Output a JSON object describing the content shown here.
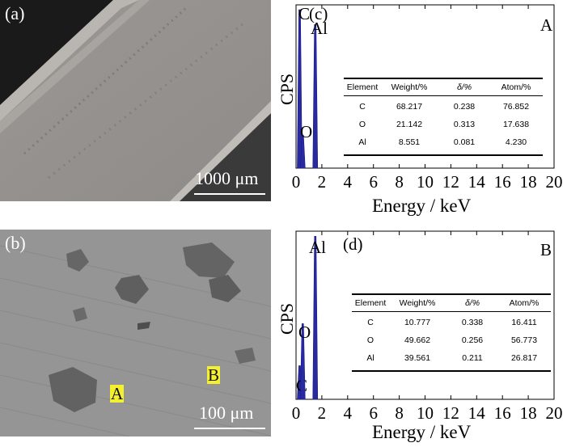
{
  "figure": {
    "panel_a": {
      "label": "(a)",
      "scale": "1000 μm"
    },
    "panel_b": {
      "label": "(b)",
      "scale": "100 μm",
      "markers": [
        "A",
        "B"
      ]
    }
  },
  "chart_data": [
    {
      "type": "bar",
      "panel": "(c)",
      "point": "A",
      "xlabel": "Energy / keV",
      "ylabel": "CPS",
      "xlim": [
        0,
        20
      ],
      "xticks": [
        0,
        2,
        4,
        6,
        8,
        10,
        12,
        14,
        16,
        18,
        20
      ],
      "peaks": [
        {
          "element": "C",
          "energy": 0.28,
          "relative_height": 0.97
        },
        {
          "element": "O",
          "energy": 0.52,
          "relative_height": 0.2
        },
        {
          "element": "Al",
          "energy": 1.49,
          "relative_height": 0.88
        }
      ],
      "table": {
        "headers": [
          "Element",
          "Weight/%",
          "δ/%",
          "Atom/%"
        ],
        "rows": [
          [
            "C",
            "68.217",
            "0.238",
            "76.852"
          ],
          [
            "O",
            "21.142",
            "0.313",
            "17.638"
          ],
          [
            "Al",
            "8.551",
            "0.081",
            "4.230"
          ]
        ]
      }
    },
    {
      "type": "bar",
      "panel": "(d)",
      "point": "B",
      "xlabel": "Energy / keV",
      "ylabel": "CPS",
      "xlim": [
        0,
        20
      ],
      "xticks": [
        0,
        2,
        4,
        6,
        8,
        10,
        12,
        14,
        16,
        18,
        20
      ],
      "peaks": [
        {
          "element": "C",
          "energy": 0.28,
          "relative_height": 0.2
        },
        {
          "element": "O",
          "energy": 0.52,
          "relative_height": 0.45
        },
        {
          "element": "Al",
          "energy": 1.49,
          "relative_height": 0.97
        }
      ],
      "table": {
        "headers": [
          "Element",
          "Weight/%",
          "δ/%",
          "Atom/%"
        ],
        "rows": [
          [
            "C",
            "10.777",
            "0.338",
            "16.411"
          ],
          [
            "O",
            "49.662",
            "0.256",
            "56.773"
          ],
          [
            "Al",
            "39.561",
            "0.211",
            "26.817"
          ]
        ]
      }
    }
  ]
}
